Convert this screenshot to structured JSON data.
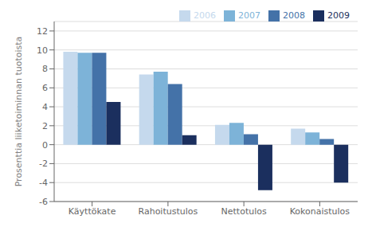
{
  "chart_data": {
    "type": "bar",
    "categories": [
      "Käyttökate",
      "Rahoitustulos",
      "Nettotulos",
      "Kokonaistulos"
    ],
    "series": [
      {
        "name": "2006",
        "color": "#c5d9ed",
        "values": [
          9.8,
          7.4,
          2.1,
          1.7
        ]
      },
      {
        "name": "2007",
        "color": "#7db3d8",
        "values": [
          9.7,
          7.7,
          2.3,
          1.3
        ]
      },
      {
        "name": "2008",
        "color": "#4472a8",
        "values": [
          9.7,
          6.4,
          1.1,
          0.6
        ]
      },
      {
        "name": "2009",
        "color": "#1b2f5e",
        "values": [
          4.5,
          1.0,
          -4.8,
          -4.0
        ]
      }
    ],
    "ylabel": "Prosenttia liiketoiminnan tuotoista",
    "ylim": [
      -6,
      13
    ],
    "yticks": [
      -6,
      -4,
      -2,
      0,
      2,
      4,
      6,
      8,
      10,
      12
    ],
    "grid": true,
    "legend": "upper right"
  }
}
